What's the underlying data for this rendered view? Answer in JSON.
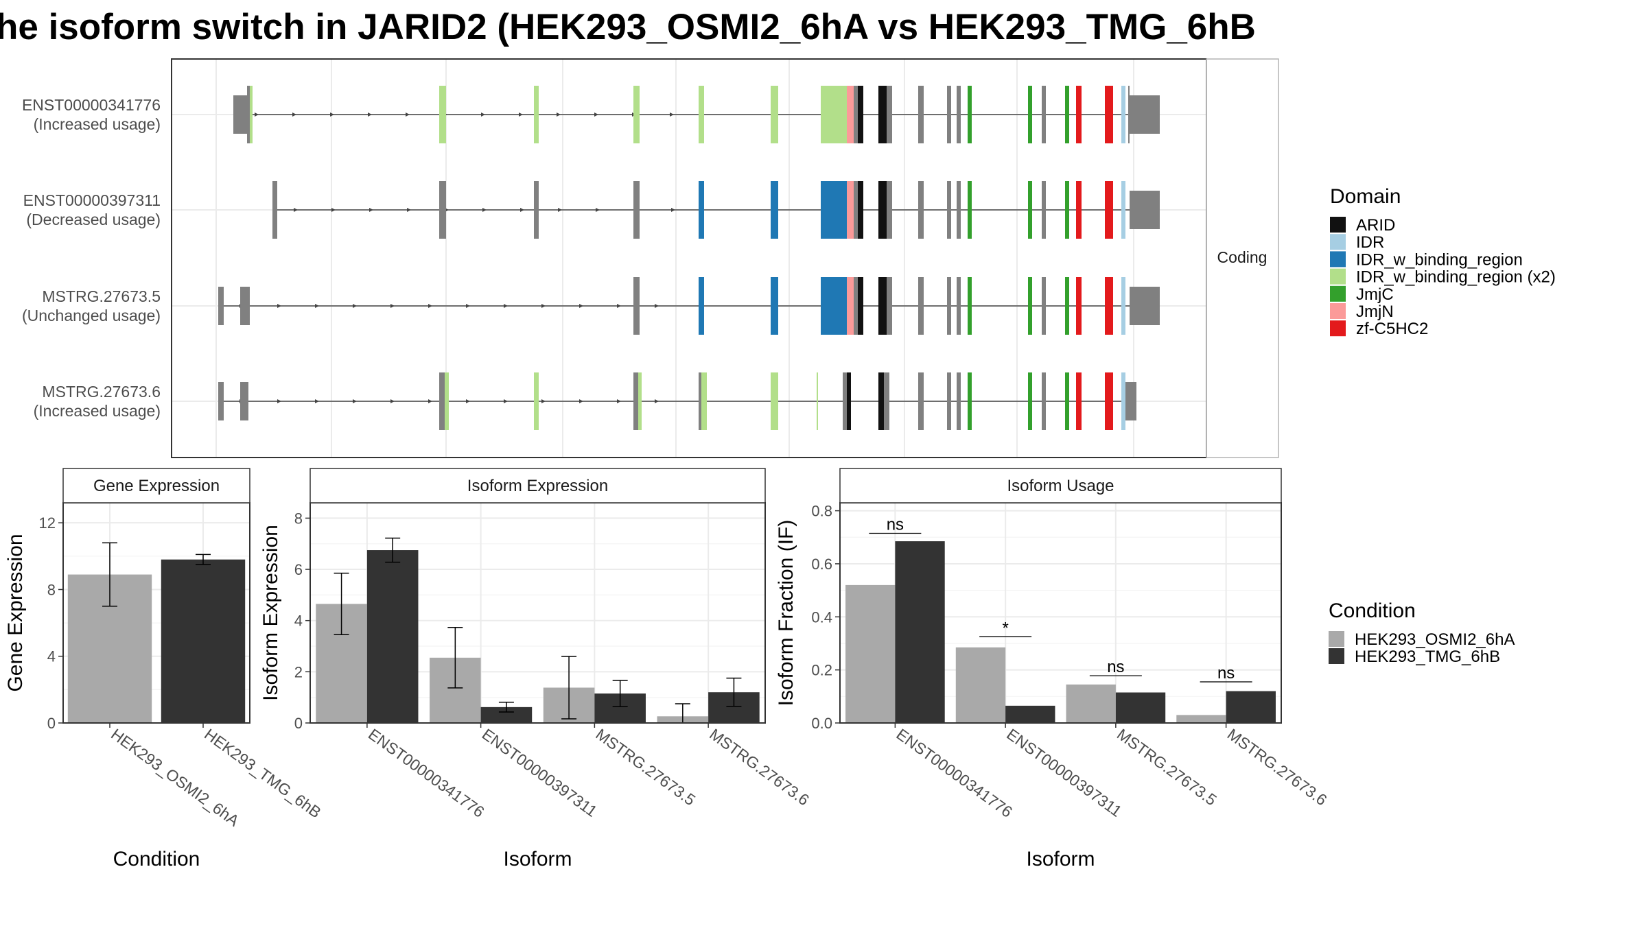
{
  "title": "he isoform switch in JARID2 (HEK293_OSMI2_6hA vs HEK293_TMG_6hB",
  "colors": {
    "ARID": "#111111",
    "IDR": "#a6cee3",
    "IDR_w_binding_region": "#1f78b4",
    "IDR_w_binding_region (x2)": "#b2df8a",
    "JmjC": "#33a02c",
    "JmjN": "#fb9a99",
    "zf-C5HC2": "#e31a1c",
    "exon": "#808080",
    "condA": "#a9a9a9",
    "condB": "#333333",
    "grid": "#ebebeb",
    "panel_border": "#333333"
  },
  "chart_data": [
    {
      "type": "gene-structure",
      "strip_label": "Coding",
      "isoforms": [
        {
          "id": "ENST00000341776",
          "usage": "(Increased usage)"
        },
        {
          "id": "ENST00000397311",
          "usage": "(Decreased usage)"
        },
        {
          "id": "MSTRG.27673.5",
          "usage": "(Unchanged usage)"
        },
        {
          "id": "MSTRG.27673.6",
          "usage": "(Increased usage)"
        }
      ],
      "legend_title": "Domain",
      "legend_items": [
        "ARID",
        "IDR",
        "IDR_w_binding_region",
        "IDR_w_binding_region (x2)",
        "JmjC",
        "JmjN",
        "zf-C5HC2"
      ]
    },
    {
      "type": "bar",
      "strip_label": "Gene Expression",
      "xlabel": "Condition",
      "ylabel": "Gene Expression",
      "categories": [
        "HEK293_OSMI2_6hA",
        "HEK293_TMG_6hB"
      ],
      "values": [
        8.9,
        9.8
      ],
      "errors": [
        [
          7.0,
          10.8
        ],
        [
          9.5,
          10.1
        ]
      ],
      "ylim": [
        0,
        13.2
      ],
      "yticks": [
        0,
        4,
        8,
        12
      ]
    },
    {
      "type": "bar",
      "strip_label": "Isoform Expression",
      "xlabel": "Isoform",
      "ylabel": "Isoform Expression",
      "categories": [
        "ENST00000341776",
        "ENST00000397311",
        "MSTRG.27673.5",
        "MSTRG.27673.6"
      ],
      "series": [
        {
          "name": "HEK293_OSMI2_6hA",
          "values": [
            4.65,
            2.55,
            1.38,
            0.26
          ],
          "errors": [
            [
              3.45,
              5.85
            ],
            [
              1.37,
              3.73
            ],
            [
              0.16,
              2.6
            ],
            [
              0.0,
              0.75
            ]
          ]
        },
        {
          "name": "HEK293_TMG_6hB",
          "values": [
            6.75,
            0.62,
            1.15,
            1.2
          ],
          "errors": [
            [
              6.28,
              7.22
            ],
            [
              0.43,
              0.81
            ],
            [
              0.64,
              1.66
            ],
            [
              0.65,
              1.75
            ]
          ]
        }
      ],
      "ylim": [
        0,
        8.6
      ],
      "yticks": [
        0,
        2,
        4,
        6,
        8
      ]
    },
    {
      "type": "bar",
      "strip_label": "Isoform Usage",
      "xlabel": "Isoform",
      "ylabel": "Isoform Fraction (IF)",
      "categories": [
        "ENST00000341776",
        "ENST00000397311",
        "MSTRG.27673.5",
        "MSTRG.27673.6"
      ],
      "series": [
        {
          "name": "HEK293_OSMI2_6hA",
          "values": [
            0.52,
            0.285,
            0.145,
            0.03
          ]
        },
        {
          "name": "HEK293_TMG_6hB",
          "values": [
            0.685,
            0.065,
            0.115,
            0.12
          ]
        }
      ],
      "significance": [
        "ns",
        "*",
        "ns",
        "ns"
      ],
      "sig_y": [
        0.715,
        0.325,
        0.178,
        0.155
      ],
      "ylim": [
        0,
        0.83
      ],
      "yticks": [
        0.0,
        0.2,
        0.4,
        0.6,
        0.8
      ],
      "ytick_labels": [
        "0.0",
        "0.2",
        "0.4",
        "0.6",
        "0.8"
      ],
      "legend_title": "Condition",
      "legend_items": [
        "HEK293_OSMI2_6hA",
        "HEK293_TMG_6hB"
      ]
    }
  ]
}
